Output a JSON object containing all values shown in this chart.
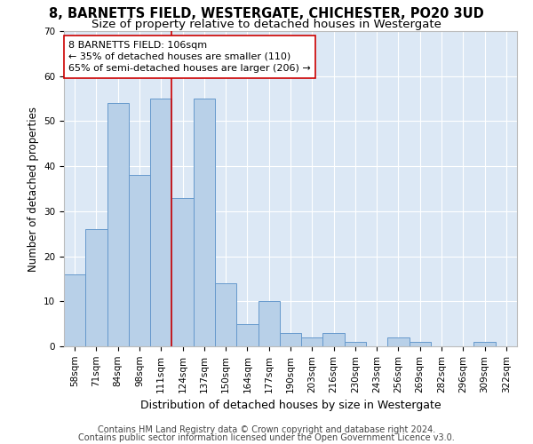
{
  "title1": "8, BARNETTS FIELD, WESTERGATE, CHICHESTER, PO20 3UD",
  "title2": "Size of property relative to detached houses in Westergate",
  "xlabel": "Distribution of detached houses by size in Westergate",
  "ylabel": "Number of detached properties",
  "categories": [
    "58sqm",
    "71sqm",
    "84sqm",
    "98sqm",
    "111sqm",
    "124sqm",
    "137sqm",
    "150sqm",
    "164sqm",
    "177sqm",
    "190sqm",
    "203sqm",
    "216sqm",
    "230sqm",
    "243sqm",
    "256sqm",
    "269sqm",
    "282sqm",
    "296sqm",
    "309sqm",
    "322sqm"
  ],
  "values": [
    16,
    26,
    54,
    38,
    55,
    33,
    55,
    14,
    5,
    10,
    3,
    2,
    3,
    1,
    0,
    2,
    1,
    0,
    0,
    1,
    0
  ],
  "bar_color": "#b8d0e8",
  "bar_edge_color": "#6699cc",
  "vline_x": 4.5,
  "vline_color": "#cc0000",
  "annotation_text": "8 BARNETTS FIELD: 106sqm\n← 35% of detached houses are smaller (110)\n65% of semi-detached houses are larger (206) →",
  "annotation_box_color": "white",
  "annotation_edge_color": "#cc0000",
  "footnote1": "Contains HM Land Registry data © Crown copyright and database right 2024.",
  "footnote2": "Contains public sector information licensed under the Open Government Licence v3.0.",
  "ylim": [
    0,
    70
  ],
  "yticks": [
    0,
    10,
    20,
    30,
    40,
    50,
    60,
    70
  ],
  "bg_color": "#dce8f5",
  "grid_color": "white",
  "title1_fontsize": 10.5,
  "title2_fontsize": 9.5,
  "ylabel_fontsize": 8.5,
  "xlabel_fontsize": 9,
  "tick_fontsize": 7.5,
  "annotation_fontsize": 8,
  "footnote_fontsize": 7
}
